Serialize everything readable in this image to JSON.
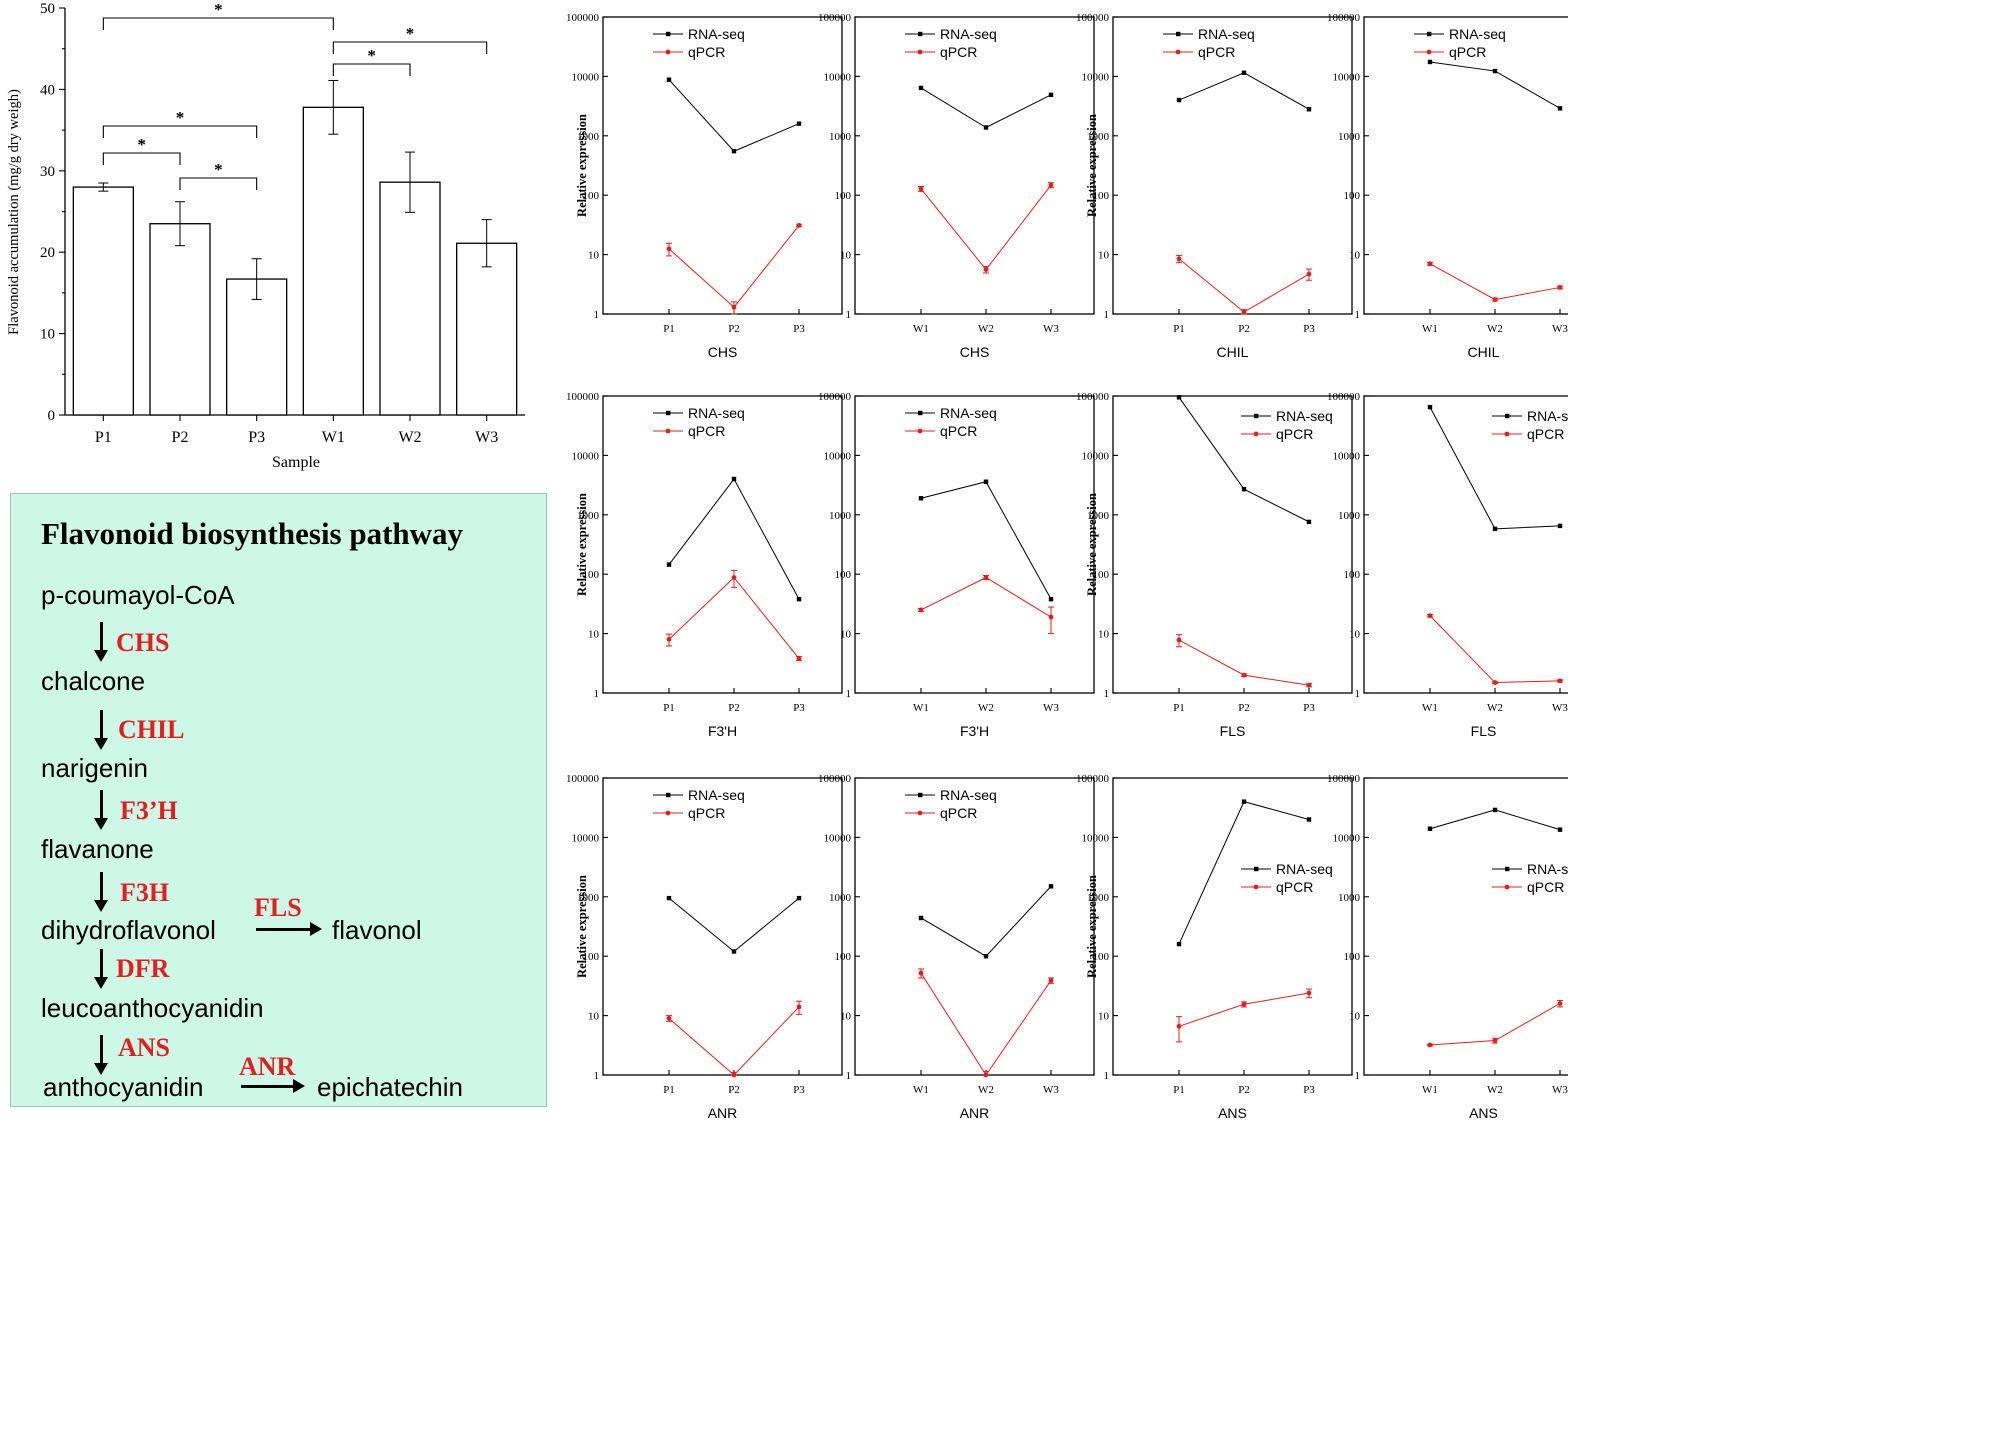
{
  "bar_chart": {
    "y_ticks": [
      "0",
      "10",
      "20",
      "30",
      "40",
      "50"
    ],
    "significance_symbol": "*"
  },
  "pathway": {
    "title": "Flavonoid biosynthesis pathway",
    "compounds": {
      "p_coumaroyl": "p-coumayol-CoA",
      "chalcone": "chalcone",
      "narigenin": "narigenin",
      "flavanone": "flavanone",
      "dihydroflavonol": "dihydroflavonol",
      "flavonol": "flavonol",
      "leucoanthocyanidin": "leucoanthocyanidin",
      "anthocyanidin": "anthocyanidin",
      "epichatechin": "epichatechin"
    },
    "enzymes": {
      "chs": "CHS",
      "chil": "CHIL",
      "f3h_prime": "F3’H",
      "f3h": "F3H",
      "fls": "FLS",
      "dfr": "DFR",
      "ans": "ANS",
      "anr": "ANR"
    }
  },
  "line_panels": {
    "y_tick_labels": [
      "1",
      "10",
      "100",
      "1000",
      "10000",
      "100000"
    ]
  },
  "colors": {
    "rna_seq": "#000000",
    "qpcr": "#e02020",
    "pathway_bg": "#cdf7e6",
    "enzyme_text": "#e02020"
  },
  "chart_data": [
    {
      "type": "bar",
      "title": "",
      "xlabel": "Sample",
      "ylabel": "Flavonoid accumulation (mg/g dry weigh)",
      "categories": [
        "P1",
        "P2",
        "P3",
        "W1",
        "W2",
        "W3"
      ],
      "values": [
        28.0,
        23.5,
        16.7,
        37.8,
        28.6,
        21.1
      ],
      "errors": [
        0.5,
        2.7,
        2.5,
        3.3,
        3.7,
        2.9
      ],
      "ylim": [
        0,
        50
      ],
      "significance": [
        {
          "from": "P1",
          "to": "W1",
          "label": "*"
        },
        {
          "from": "W1",
          "to": "W3",
          "label": "*"
        },
        {
          "from": "W1",
          "to": "W2",
          "label": "*"
        },
        {
          "from": "P1",
          "to": "P3",
          "label": "*"
        },
        {
          "from": "P1",
          "to": "P2",
          "label": "*"
        },
        {
          "from": "P2",
          "to": "P3",
          "label": "*"
        }
      ]
    },
    {
      "type": "line",
      "xlabel": "CHS",
      "ylabel": "Relative expression",
      "yscale": "log",
      "ylim": [
        1,
        100000
      ],
      "legend": "top-left",
      "categories": [
        "P1",
        "P2",
        "P3"
      ],
      "series": [
        {
          "name": "RNA-seq",
          "values": [
            8800,
            550,
            1600
          ]
        },
        {
          "name": "qPCR",
          "values": [
            12.5,
            1.3,
            31
          ],
          "errors": [
            3.0,
            0.3,
            1.5
          ]
        }
      ]
    },
    {
      "type": "line",
      "xlabel": "CHS",
      "ylabel": "",
      "yscale": "log",
      "ylim": [
        1,
        100000
      ],
      "legend": "top-left",
      "categories": [
        "W1",
        "W2",
        "W3"
      ],
      "series": [
        {
          "name": "RNA-seq",
          "values": [
            6400,
            1380,
            4900
          ]
        },
        {
          "name": "qPCR",
          "values": [
            128,
            5.6,
            148
          ],
          "errors": [
            12,
            0.7,
            14
          ]
        }
      ]
    },
    {
      "type": "line",
      "xlabel": "CHIL",
      "ylabel": "Relative expression",
      "yscale": "log",
      "ylim": [
        1,
        100000
      ],
      "legend": "top-left",
      "categories": [
        "P1",
        "P2",
        "P3"
      ],
      "series": [
        {
          "name": "RNA-seq",
          "values": [
            4000,
            11500,
            2800
          ]
        },
        {
          "name": "qPCR",
          "values": [
            8.5,
            1.08,
            4.7
          ],
          "errors": [
            1.2,
            0.1,
            1.0
          ]
        }
      ]
    },
    {
      "type": "line",
      "xlabel": "CHIL",
      "ylabel": "",
      "yscale": "log",
      "ylim": [
        1,
        100000
      ],
      "legend": "top-left",
      "categories": [
        "W1",
        "W2",
        "W3"
      ],
      "series": [
        {
          "name": "RNA-seq",
          "values": [
            17500,
            12300,
            2900
          ]
        },
        {
          "name": "qPCR",
          "values": [
            7.0,
            1.75,
            2.8
          ],
          "errors": [
            0.4,
            0.1,
            0.15
          ]
        }
      ]
    },
    {
      "type": "line",
      "xlabel": "F3'H",
      "ylabel": "Relative expression",
      "yscale": "log",
      "ylim": [
        1,
        100000
      ],
      "legend": "top-left",
      "categories": [
        "P1",
        "P2",
        "P3"
      ],
      "series": [
        {
          "name": "RNA-seq",
          "values": [
            145,
            4000,
            38
          ]
        },
        {
          "name": "qPCR",
          "values": [
            8.0,
            88,
            3.8
          ],
          "errors": [
            1.8,
            28,
            0.3
          ]
        }
      ]
    },
    {
      "type": "line",
      "xlabel": "F3'H",
      "ylabel": "",
      "yscale": "log",
      "ylim": [
        1,
        100000
      ],
      "legend": "top-left",
      "categories": [
        "W1",
        "W2",
        "W3"
      ],
      "series": [
        {
          "name": "RNA-seq",
          "values": [
            1900,
            3600,
            38
          ]
        },
        {
          "name": "qPCR",
          "values": [
            25,
            88,
            19
          ],
          "errors": [
            1.5,
            7,
            9
          ]
        }
      ]
    },
    {
      "type": "line",
      "xlabel": "FLS",
      "ylabel": "Relative expression",
      "yscale": "log",
      "ylim": [
        1,
        100000
      ],
      "legend": "top-right",
      "categories": [
        "P1",
        "P2",
        "P3"
      ],
      "series": [
        {
          "name": "RNA-seq",
          "values": [
            95000,
            2700,
            760
          ]
        },
        {
          "name": "qPCR",
          "values": [
            7.8,
            2.0,
            1.35
          ],
          "errors": [
            1.8,
            0.1,
            0.08
          ]
        }
      ]
    },
    {
      "type": "line",
      "xlabel": "FLS",
      "ylabel": "",
      "yscale": "log",
      "ylim": [
        1,
        100000
      ],
      "legend": "top-right",
      "categories": [
        "W1",
        "W2",
        "W3"
      ],
      "series": [
        {
          "name": "RNA-seq",
          "values": [
            65000,
            580,
            650
          ]
        },
        {
          "name": "qPCR",
          "values": [
            20,
            1.5,
            1.6
          ],
          "errors": [
            1.0,
            0.05,
            0.06
          ]
        }
      ]
    },
    {
      "type": "line",
      "xlabel": "ANR",
      "ylabel": "Relative expression",
      "yscale": "log",
      "ylim": [
        1,
        100000
      ],
      "legend": "top-left",
      "categories": [
        "P1",
        "P2",
        "P3"
      ],
      "series": [
        {
          "name": "RNA-seq",
          "values": [
            950,
            120,
            950
          ]
        },
        {
          "name": "qPCR",
          "values": [
            9.0,
            1.0,
            14
          ],
          "errors": [
            1.0,
            0.1,
            3.5
          ]
        }
      ]
    },
    {
      "type": "line",
      "xlabel": "ANR",
      "ylabel": "",
      "yscale": "log",
      "ylim": [
        1,
        100000
      ],
      "legend": "top-left",
      "categories": [
        "W1",
        "W2",
        "W3"
      ],
      "series": [
        {
          "name": "RNA-seq",
          "values": [
            440,
            100,
            1500
          ]
        },
        {
          "name": "qPCR",
          "values": [
            52,
            1.0,
            39
          ],
          "errors": [
            9,
            0.15,
            4
          ]
        }
      ]
    },
    {
      "type": "line",
      "xlabel": "ANS",
      "ylabel": "Relative expression",
      "yscale": "log",
      "ylim": [
        1,
        100000
      ],
      "legend": "center-right",
      "categories": [
        "P1",
        "P2",
        "P3"
      ],
      "series": [
        {
          "name": "RNA-seq",
          "values": [
            160,
            40000,
            20000
          ]
        },
        {
          "name": "qPCR",
          "values": [
            6.6,
            15.5,
            24
          ],
          "errors": [
            3.0,
            1.5,
            4
          ]
        }
      ]
    },
    {
      "type": "line",
      "xlabel": "ANS",
      "ylabel": "",
      "yscale": "log",
      "ylim": [
        1,
        100000
      ],
      "legend": "center-right",
      "categories": [
        "W1",
        "W2",
        "W3"
      ],
      "series": [
        {
          "name": "RNA-seq",
          "values": [
            14000,
            29000,
            13500
          ]
        },
        {
          "name": "qPCR",
          "values": [
            3.2,
            3.8,
            16
          ],
          "errors": [
            0.1,
            0.35,
            2.0
          ]
        }
      ]
    }
  ]
}
